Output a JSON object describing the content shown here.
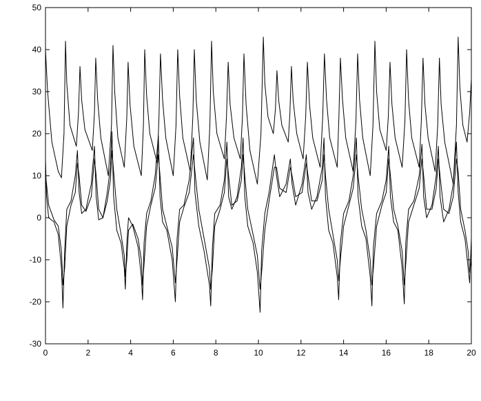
{
  "chart_data": {
    "type": "line",
    "xlim": [
      0,
      20
    ],
    "ylim": [
      -30,
      50
    ],
    "xticks": [
      0,
      2,
      4,
      6,
      8,
      10,
      12,
      14,
      16,
      18,
      20
    ],
    "yticks": [
      -30,
      -20,
      -10,
      0,
      10,
      20,
      30,
      40,
      50
    ],
    "grid": false,
    "series": [
      {
        "color": "#000000",
        "x": [
          0,
          0.1,
          0.3,
          0.6,
          0.75,
          0.87,
          0.94,
          1.0,
          1.15,
          1.45,
          1.55,
          1.62,
          1.7,
          1.85,
          2.2,
          2.3,
          2.36,
          2.45,
          2.6,
          2.95,
          3.1,
          3.17,
          3.25,
          3.4,
          3.7,
          3.82,
          3.88,
          3.97,
          4.15,
          4.5,
          4.6,
          4.66,
          4.75,
          4.9,
          5.25,
          5.33,
          5.4,
          5.5,
          5.65,
          6.0,
          6.13,
          6.21,
          6.3,
          6.45,
          6.8,
          6.92,
          6.99,
          7.08,
          7.25,
          7.6,
          7.72,
          7.8,
          7.88,
          8.05,
          8.4,
          8.5,
          8.58,
          8.67,
          8.85,
          9.15,
          9.25,
          9.32,
          9.42,
          9.6,
          9.95,
          10.12,
          10.23,
          10.3,
          10.45,
          10.7,
          10.8,
          10.87,
          10.95,
          11.1,
          11.4,
          11.48,
          11.55,
          11.63,
          11.8,
          12.1,
          12.22,
          12.3,
          12.4,
          12.55,
          12.9,
          13.02,
          13.1,
          13.2,
          13.35,
          13.7,
          13.78,
          13.85,
          13.95,
          14.1,
          14.45,
          14.58,
          14.66,
          14.75,
          14.9,
          15.25,
          15.38,
          15.47,
          15.55,
          15.7,
          16.0,
          16.1,
          16.18,
          16.27,
          16.42,
          16.75,
          16.88,
          16.96,
          17.05,
          17.2,
          17.55,
          17.65,
          17.73,
          17.82,
          17.97,
          18.3,
          18.42,
          18.5,
          18.58,
          18.75,
          19.15,
          19.3,
          19.38,
          19.46,
          19.6,
          19.8,
          19.92,
          20
        ],
        "values": [
          40,
          30,
          18,
          11,
          9.5,
          20,
          42,
          32,
          22,
          17,
          25,
          36,
          28,
          21,
          16,
          25,
          38,
          28,
          19,
          10,
          22,
          41,
          30,
          19,
          12,
          24,
          37,
          27,
          17,
          10,
          22,
          40,
          29,
          20,
          13,
          24,
          39,
          28,
          19,
          10,
          22,
          40,
          29,
          19,
          11,
          24,
          40,
          28,
          18,
          9,
          22,
          42,
          30,
          20,
          14,
          24,
          37,
          27,
          19,
          14,
          24,
          39,
          27,
          16,
          8,
          20,
          43,
          32,
          24,
          20,
          26,
          35,
          28,
          22,
          18,
          25,
          36,
          28,
          20,
          14,
          24,
          37,
          27,
          19,
          12,
          24,
          39,
          28,
          19,
          12,
          24,
          38,
          28,
          19,
          11,
          23,
          39,
          28,
          19,
          10,
          22,
          42,
          30,
          21,
          16,
          24,
          37,
          27,
          19,
          12,
          23,
          40,
          28,
          19,
          12,
          23,
          38,
          27,
          19,
          11,
          22,
          38,
          27,
          18,
          8,
          22,
          43,
          31,
          22,
          18,
          25,
          33
        ]
      },
      {
        "color": "#000000",
        "x": [
          0,
          0.05,
          0.15,
          0.4,
          0.6,
          0.75,
          0.82,
          0.9,
          1.0,
          1.2,
          1.4,
          1.5,
          1.58,
          1.7,
          1.9,
          2.15,
          2.3,
          2.38,
          2.5,
          2.7,
          2.9,
          3.05,
          3.12,
          3.2,
          3.35,
          3.55,
          3.7,
          3.75,
          3.82,
          3.9,
          4.1,
          4.35,
          4.5,
          4.56,
          4.63,
          4.75,
          4.95,
          5.15,
          5.3,
          5.38,
          5.5,
          5.7,
          5.95,
          6.1,
          6.18,
          6.3,
          6.5,
          6.75,
          6.95,
          7.02,
          7.2,
          7.45,
          7.7,
          7.76,
          7.84,
          7.95,
          8.2,
          8.4,
          8.52,
          8.6,
          8.75,
          9.0,
          9.2,
          9.28,
          9.36,
          9.5,
          9.75,
          9.95,
          10.08,
          10.15,
          10.3,
          10.5,
          10.75,
          10.85,
          11.0,
          11.3,
          11.5,
          11.58,
          11.75,
          12.05,
          12.25,
          12.33,
          12.5,
          12.75,
          13.0,
          13.08,
          13.15,
          13.3,
          13.5,
          13.7,
          13.77,
          13.85,
          14.0,
          14.25,
          14.45,
          14.6,
          14.68,
          14.85,
          15.05,
          15.25,
          15.33,
          15.4,
          15.55,
          15.8,
          16.0,
          16.12,
          16.2,
          16.35,
          16.55,
          16.75,
          16.85,
          16.92,
          17.05,
          17.3,
          17.55,
          17.68,
          17.76,
          17.9,
          18.15,
          18.35,
          18.45,
          18.53,
          18.7,
          18.95,
          19.15,
          19.3,
          19.38,
          19.5,
          19.7,
          19.85,
          19.92,
          20
        ],
        "values": [
          14,
          5,
          0,
          -1,
          -4,
          -12,
          -21.5,
          -8,
          2,
          4,
          10,
          16,
          6,
          1,
          2,
          8,
          17,
          5,
          -0.5,
          0,
          6,
          12,
          20.5,
          5,
          -3,
          -6,
          -12,
          -17,
          -6,
          0,
          -2,
          -7,
          -14,
          -19.5,
          -6,
          1,
          4,
          10,
          19.5,
          5,
          -1,
          -3,
          -10,
          -20,
          -5,
          2,
          3,
          9,
          19,
          6,
          -2,
          -8,
          -16,
          -21,
          -7,
          1,
          3,
          9,
          18,
          5,
          2,
          5,
          12,
          19,
          5,
          -2,
          -6,
          -13,
          -22.5,
          -8,
          1,
          6,
          15,
          10,
          5,
          8,
          14,
          8,
          3,
          8,
          15,
          6,
          2,
          5,
          12,
          19,
          5,
          -3,
          -6,
          -14,
          -19.5,
          -6,
          1,
          4,
          10,
          19,
          5,
          -2,
          -5,
          -14,
          -21,
          -7,
          1,
          4,
          9,
          17,
          5,
          -1,
          -3,
          -12,
          -20.5,
          -6,
          2,
          4,
          10,
          17.5,
          5,
          0,
          3,
          10,
          17,
          5,
          -1,
          2,
          8,
          18,
          6,
          -1,
          -5,
          -12,
          -15.5,
          -5
        ]
      },
      {
        "color": "#000000",
        "x": [
          0,
          0.05,
          0.15,
          0.4,
          0.6,
          0.75,
          0.82,
          0.9,
          1.0,
          1.2,
          1.4,
          1.5,
          1.58,
          1.7,
          1.9,
          2.15,
          2.3,
          2.38,
          2.5,
          2.7,
          2.9,
          3.05,
          3.12,
          3.2,
          3.35,
          3.55,
          3.7,
          3.75,
          3.82,
          3.9,
          4.1,
          4.35,
          4.5,
          4.56,
          4.63,
          4.75,
          4.95,
          5.15,
          5.3,
          5.38,
          5.5,
          5.7,
          5.95,
          6.1,
          6.18,
          6.3,
          6.5,
          6.75,
          6.95,
          7.02,
          7.2,
          7.45,
          7.7,
          7.76,
          7.84,
          7.95,
          8.2,
          8.4,
          8.52,
          8.6,
          8.75,
          9.0,
          9.2,
          9.28,
          9.36,
          9.5,
          9.75,
          9.95,
          10.08,
          10.15,
          10.3,
          10.5,
          10.75,
          10.85,
          11.0,
          11.3,
          11.5,
          11.58,
          11.75,
          12.05,
          12.25,
          12.33,
          12.5,
          12.75,
          13.0,
          13.08,
          13.15,
          13.3,
          13.5,
          13.7,
          13.77,
          13.85,
          14.0,
          14.25,
          14.45,
          14.6,
          14.68,
          14.85,
          15.05,
          15.25,
          15.33,
          15.4,
          15.55,
          15.8,
          16.0,
          16.12,
          16.2,
          16.35,
          16.55,
          16.75,
          16.85,
          16.92,
          17.05,
          17.3,
          17.55,
          17.68,
          17.76,
          17.9,
          18.15,
          18.35,
          18.45,
          18.53,
          18.7,
          18.95,
          19.15,
          19.3,
          19.38,
          19.5,
          19.7,
          19.85,
          19.92,
          20
        ],
        "values": [
          10,
          8,
          3,
          -0.5,
          -2,
          -8,
          -16,
          -12,
          -2,
          3,
          6,
          13,
          10,
          3,
          1.5,
          5,
          14,
          10,
          2,
          0,
          4,
          9,
          16,
          11,
          2,
          -4,
          -9,
          -14,
          -10,
          -3,
          -1.5,
          -5,
          -10,
          -16,
          -11,
          -2,
          3,
          7,
          15,
          10,
          2,
          -2,
          -7,
          -15.5,
          -10,
          -1,
          2.5,
          6,
          15,
          11,
          2,
          -5,
          -12,
          -17,
          -12,
          -2,
          2,
          6,
          14,
          10,
          3,
          4,
          9,
          15,
          10,
          2,
          -4,
          -9,
          -17,
          -13,
          -3,
          4,
          12,
          12,
          7,
          6,
          12,
          10,
          5,
          6,
          13,
          10,
          4,
          4,
          9,
          15,
          10,
          2,
          -4,
          -10,
          -15,
          -10,
          -2,
          3,
          7,
          15,
          10,
          2,
          -3,
          -10,
          -16,
          -12,
          -2,
          3,
          6,
          14,
          10,
          2,
          -2,
          -8,
          -16,
          -11,
          -1,
          3,
          7,
          14,
          10,
          2,
          2,
          7,
          14,
          10,
          2,
          1,
          5,
          14,
          11,
          2,
          -3,
          -8,
          -13,
          -10
        ]
      }
    ]
  }
}
